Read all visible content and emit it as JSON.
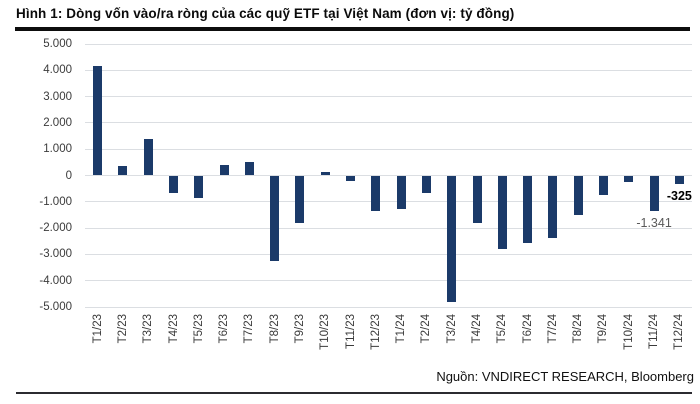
{
  "title": "Hình 1: Dòng vốn vào/ra ròng của các quỹ ETF tại Việt Nam (đơn vị: tỷ đồng)",
  "source": "Nguồn: VNDIRECT RESEARCH, Bloomberg",
  "colors": {
    "bar": "#1b3a69",
    "gridline": "#dbdee2",
    "axis_text": "#3b3b3b",
    "annotation_bold": "#000000",
    "annotation_plain": "#595959",
    "rule": "#0d0d0d"
  },
  "chart_data": {
    "type": "bar",
    "title": "Dòng vốn vào/ra ròng của các quỹ ETF tại Việt Nam",
    "unit": "tỷ đồng",
    "categories": [
      "T1/23",
      "T2/23",
      "T3/23",
      "T4/23",
      "T5/23",
      "T6/23",
      "T7/23",
      "T8/23",
      "T9/23",
      "T10/23",
      "T11/23",
      "T12/23",
      "T1/24",
      "T2/24",
      "T3/24",
      "T4/24",
      "T5/24",
      "T6/24",
      "T7/24",
      "T8/24",
      "T9/24",
      "T10/24",
      "T11/24",
      "T12/24"
    ],
    "values": [
      4150,
      380,
      1400,
      -670,
      -850,
      400,
      520,
      -3250,
      -1790,
      120,
      -200,
      -1340,
      -1290,
      -650,
      -4800,
      -1820,
      -2810,
      -2550,
      -2390,
      -1500,
      -740,
      -230,
      -1341,
      -325
    ],
    "ylim": [
      -5000,
      5000
    ],
    "ytick_step": 1000,
    "ytick_labels": [
      "5.000",
      "4.000",
      "3.000",
      "2.000",
      "1.000",
      "0",
      "-1.000",
      "-2.000",
      "-3.000",
      "-4.000",
      "-5.000"
    ],
    "grid": true,
    "legend": false,
    "bar_color": "#1b3a69",
    "annotations": [
      {
        "category": "T11/24",
        "text": "-1.341",
        "bold": false
      },
      {
        "category": "T12/24",
        "text": "-325",
        "bold": true
      }
    ]
  }
}
